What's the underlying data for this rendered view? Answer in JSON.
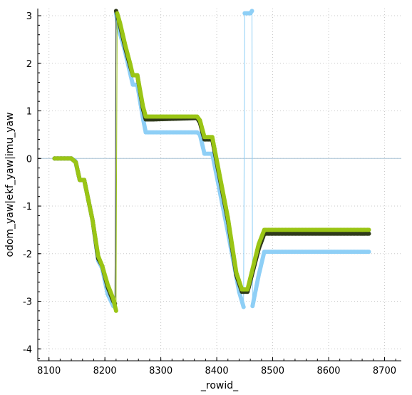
{
  "chart_data": {
    "type": "scatter",
    "title": "",
    "xlabel": "_rowid_",
    "ylabel": "odom_yaw|ekf_yaw|imu_yaw",
    "xlim": [
      8080,
      8730
    ],
    "ylim": [
      -4.25,
      3.15
    ],
    "x_ticks": [
      8100,
      8200,
      8300,
      8400,
      8500,
      8600,
      8700
    ],
    "y_ticks": [
      3,
      2,
      1,
      0,
      -1,
      -2,
      -3,
      -4
    ],
    "grid": true,
    "zero_line": true,
    "series": [
      {
        "color": "#8ecff6",
        "points": [
          [
            8110,
            0.0
          ],
          [
            8140,
            0.0
          ],
          [
            8147,
            -0.05
          ],
          [
            8155,
            -0.45
          ],
          [
            8163,
            -0.45
          ],
          [
            8178,
            -1.3
          ],
          [
            8188,
            -2.15
          ],
          [
            8195,
            -2.3
          ],
          [
            8205,
            -2.85
          ],
          [
            8215,
            -3.1
          ],
          [
            8218,
            -3.12
          ],
          [
            8220,
            3.05
          ],
          [
            8224,
            2.75
          ],
          [
            8235,
            2.3
          ],
          [
            8245,
            1.8
          ],
          [
            8250,
            1.55
          ],
          [
            8258,
            1.55
          ],
          [
            8268,
            0.85
          ],
          [
            8273,
            0.55
          ],
          [
            8285,
            0.55
          ],
          [
            8365,
            0.55
          ],
          [
            8370,
            0.5
          ],
          [
            8378,
            0.1
          ],
          [
            8392,
            0.1
          ],
          [
            8420,
            -1.55
          ],
          [
            8440,
            -2.8
          ],
          [
            8448,
            -3.12
          ],
          [
            8450,
            3.05
          ],
          [
            8460,
            3.05
          ],
          [
            8463,
            3.1
          ],
          [
            8464,
            -3.1
          ],
          [
            8475,
            -2.45
          ],
          [
            8485,
            -1.96
          ],
          [
            8672,
            -1.96
          ]
        ]
      },
      {
        "color": "#2f3a1a",
        "points": [
          [
            8110,
            0.0
          ],
          [
            8140,
            0.0
          ],
          [
            8148,
            -0.08
          ],
          [
            8155,
            -0.45
          ],
          [
            8163,
            -0.45
          ],
          [
            8178,
            -1.3
          ],
          [
            8188,
            -2.1
          ],
          [
            8195,
            -2.25
          ],
          [
            8205,
            -2.7
          ],
          [
            8215,
            -3.0
          ],
          [
            8218,
            -3.05
          ],
          [
            8220,
            3.1
          ],
          [
            8225,
            2.9
          ],
          [
            8237,
            2.3
          ],
          [
            8245,
            1.95
          ],
          [
            8250,
            1.75
          ],
          [
            8258,
            1.75
          ],
          [
            8268,
            1.05
          ],
          [
            8273,
            0.82
          ],
          [
            8285,
            0.82
          ],
          [
            8365,
            0.85
          ],
          [
            8370,
            0.75
          ],
          [
            8378,
            0.4
          ],
          [
            8392,
            0.4
          ],
          [
            8420,
            -1.3
          ],
          [
            8435,
            -2.45
          ],
          [
            8445,
            -2.8
          ],
          [
            8455,
            -2.8
          ],
          [
            8475,
            -1.9
          ],
          [
            8485,
            -1.58
          ],
          [
            8672,
            -1.58
          ]
        ]
      },
      {
        "color": "#9ac515",
        "points": [
          [
            8110,
            0.0
          ],
          [
            8140,
            0.0
          ],
          [
            8148,
            -0.08
          ],
          [
            8155,
            -0.45
          ],
          [
            8163,
            -0.45
          ],
          [
            8178,
            -1.3
          ],
          [
            8188,
            -2.05
          ],
          [
            8195,
            -2.25
          ],
          [
            8205,
            -2.65
          ],
          [
            8215,
            -2.95
          ],
          [
            8220,
            -3.2
          ],
          [
            8222,
            3.05
          ],
          [
            8227,
            2.85
          ],
          [
            8237,
            2.35
          ],
          [
            8245,
            2.0
          ],
          [
            8250,
            1.75
          ],
          [
            8258,
            1.75
          ],
          [
            8268,
            1.1
          ],
          [
            8273,
            0.88
          ],
          [
            8285,
            0.88
          ],
          [
            8365,
            0.88
          ],
          [
            8370,
            0.8
          ],
          [
            8378,
            0.45
          ],
          [
            8392,
            0.45
          ],
          [
            8420,
            -1.25
          ],
          [
            8435,
            -2.4
          ],
          [
            8445,
            -2.75
          ],
          [
            8455,
            -2.75
          ],
          [
            8475,
            -1.8
          ],
          [
            8485,
            -1.5
          ],
          [
            8672,
            -1.5
          ]
        ]
      }
    ]
  }
}
